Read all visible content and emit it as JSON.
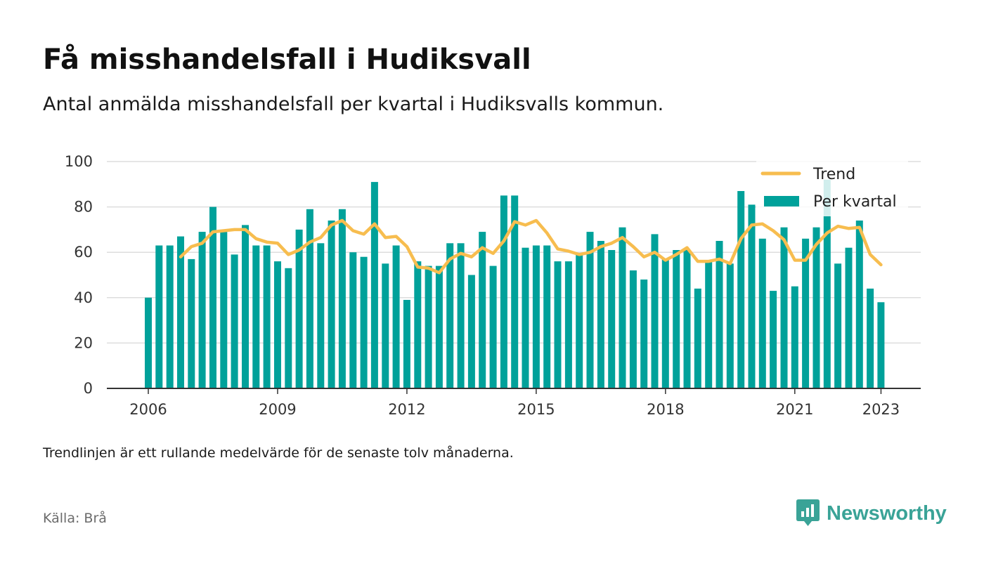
{
  "title": "Få misshandelsfall i Hudiksvall",
  "subtitle": "Antal anmälda misshandelsfall per kvartal i Hudiksvalls kommun.",
  "note": "Trendlinjen är ett rullande medelvärde för de senaste tolv månaderna.",
  "source": "Källa: Brå",
  "brand": "Newsworthy",
  "colors": {
    "bar": "#00a19a",
    "trend": "#f7bd4f",
    "grid": "#dddddd",
    "axis": "#333333",
    "brand": "#3aa397"
  },
  "chart_data": {
    "type": "bar",
    "start": "2006 Q1",
    "ylim": [
      0,
      100
    ],
    "yticks": [
      0,
      20,
      40,
      60,
      80,
      100
    ],
    "xticks": [
      "2006",
      "2009",
      "2012",
      "2015",
      "2018",
      "2021",
      "2023"
    ],
    "legend_position": "top-right",
    "grid": true,
    "series": [
      {
        "name": "Per kvartal",
        "type": "bar",
        "values": [
          40,
          63,
          63,
          67,
          57,
          69,
          80,
          69,
          59,
          72,
          63,
          63,
          56,
          53,
          70,
          79,
          64,
          74,
          79,
          60,
          58,
          91,
          55,
          63,
          39,
          56,
          54,
          54,
          64,
          64,
          50,
          69,
          54,
          85,
          85,
          62,
          63,
          63,
          56,
          56,
          59,
          69,
          65,
          61,
          71,
          52,
          48,
          68,
          57,
          61,
          61,
          44,
          56,
          65,
          55,
          87,
          81,
          66,
          43,
          71,
          45,
          66,
          71,
          92,
          55,
          62,
          74,
          44,
          38
        ]
      },
      {
        "name": "Trend",
        "type": "line",
        "values": [
          null,
          null,
          null,
          58,
          62.5,
          64,
          69,
          69.5,
          70,
          70,
          66,
          64.5,
          64,
          59,
          61,
          64.5,
          66.5,
          72,
          74,
          69.5,
          68,
          72.5,
          66.5,
          67,
          62.5,
          53.5,
          53,
          51,
          57,
          59.5,
          58,
          62,
          59.5,
          65,
          73.5,
          72,
          74,
          68.5,
          61.5,
          60.5,
          59,
          60,
          62.5,
          64,
          66.5,
          62.5,
          58,
          60,
          56.5,
          59,
          62,
          56,
          56,
          57,
          55,
          66,
          72,
          72.5,
          69.5,
          65.5,
          56.5,
          56.5,
          63.5,
          68.5,
          71.5,
          70.5,
          71,
          59,
          54.5
        ]
      }
    ]
  }
}
